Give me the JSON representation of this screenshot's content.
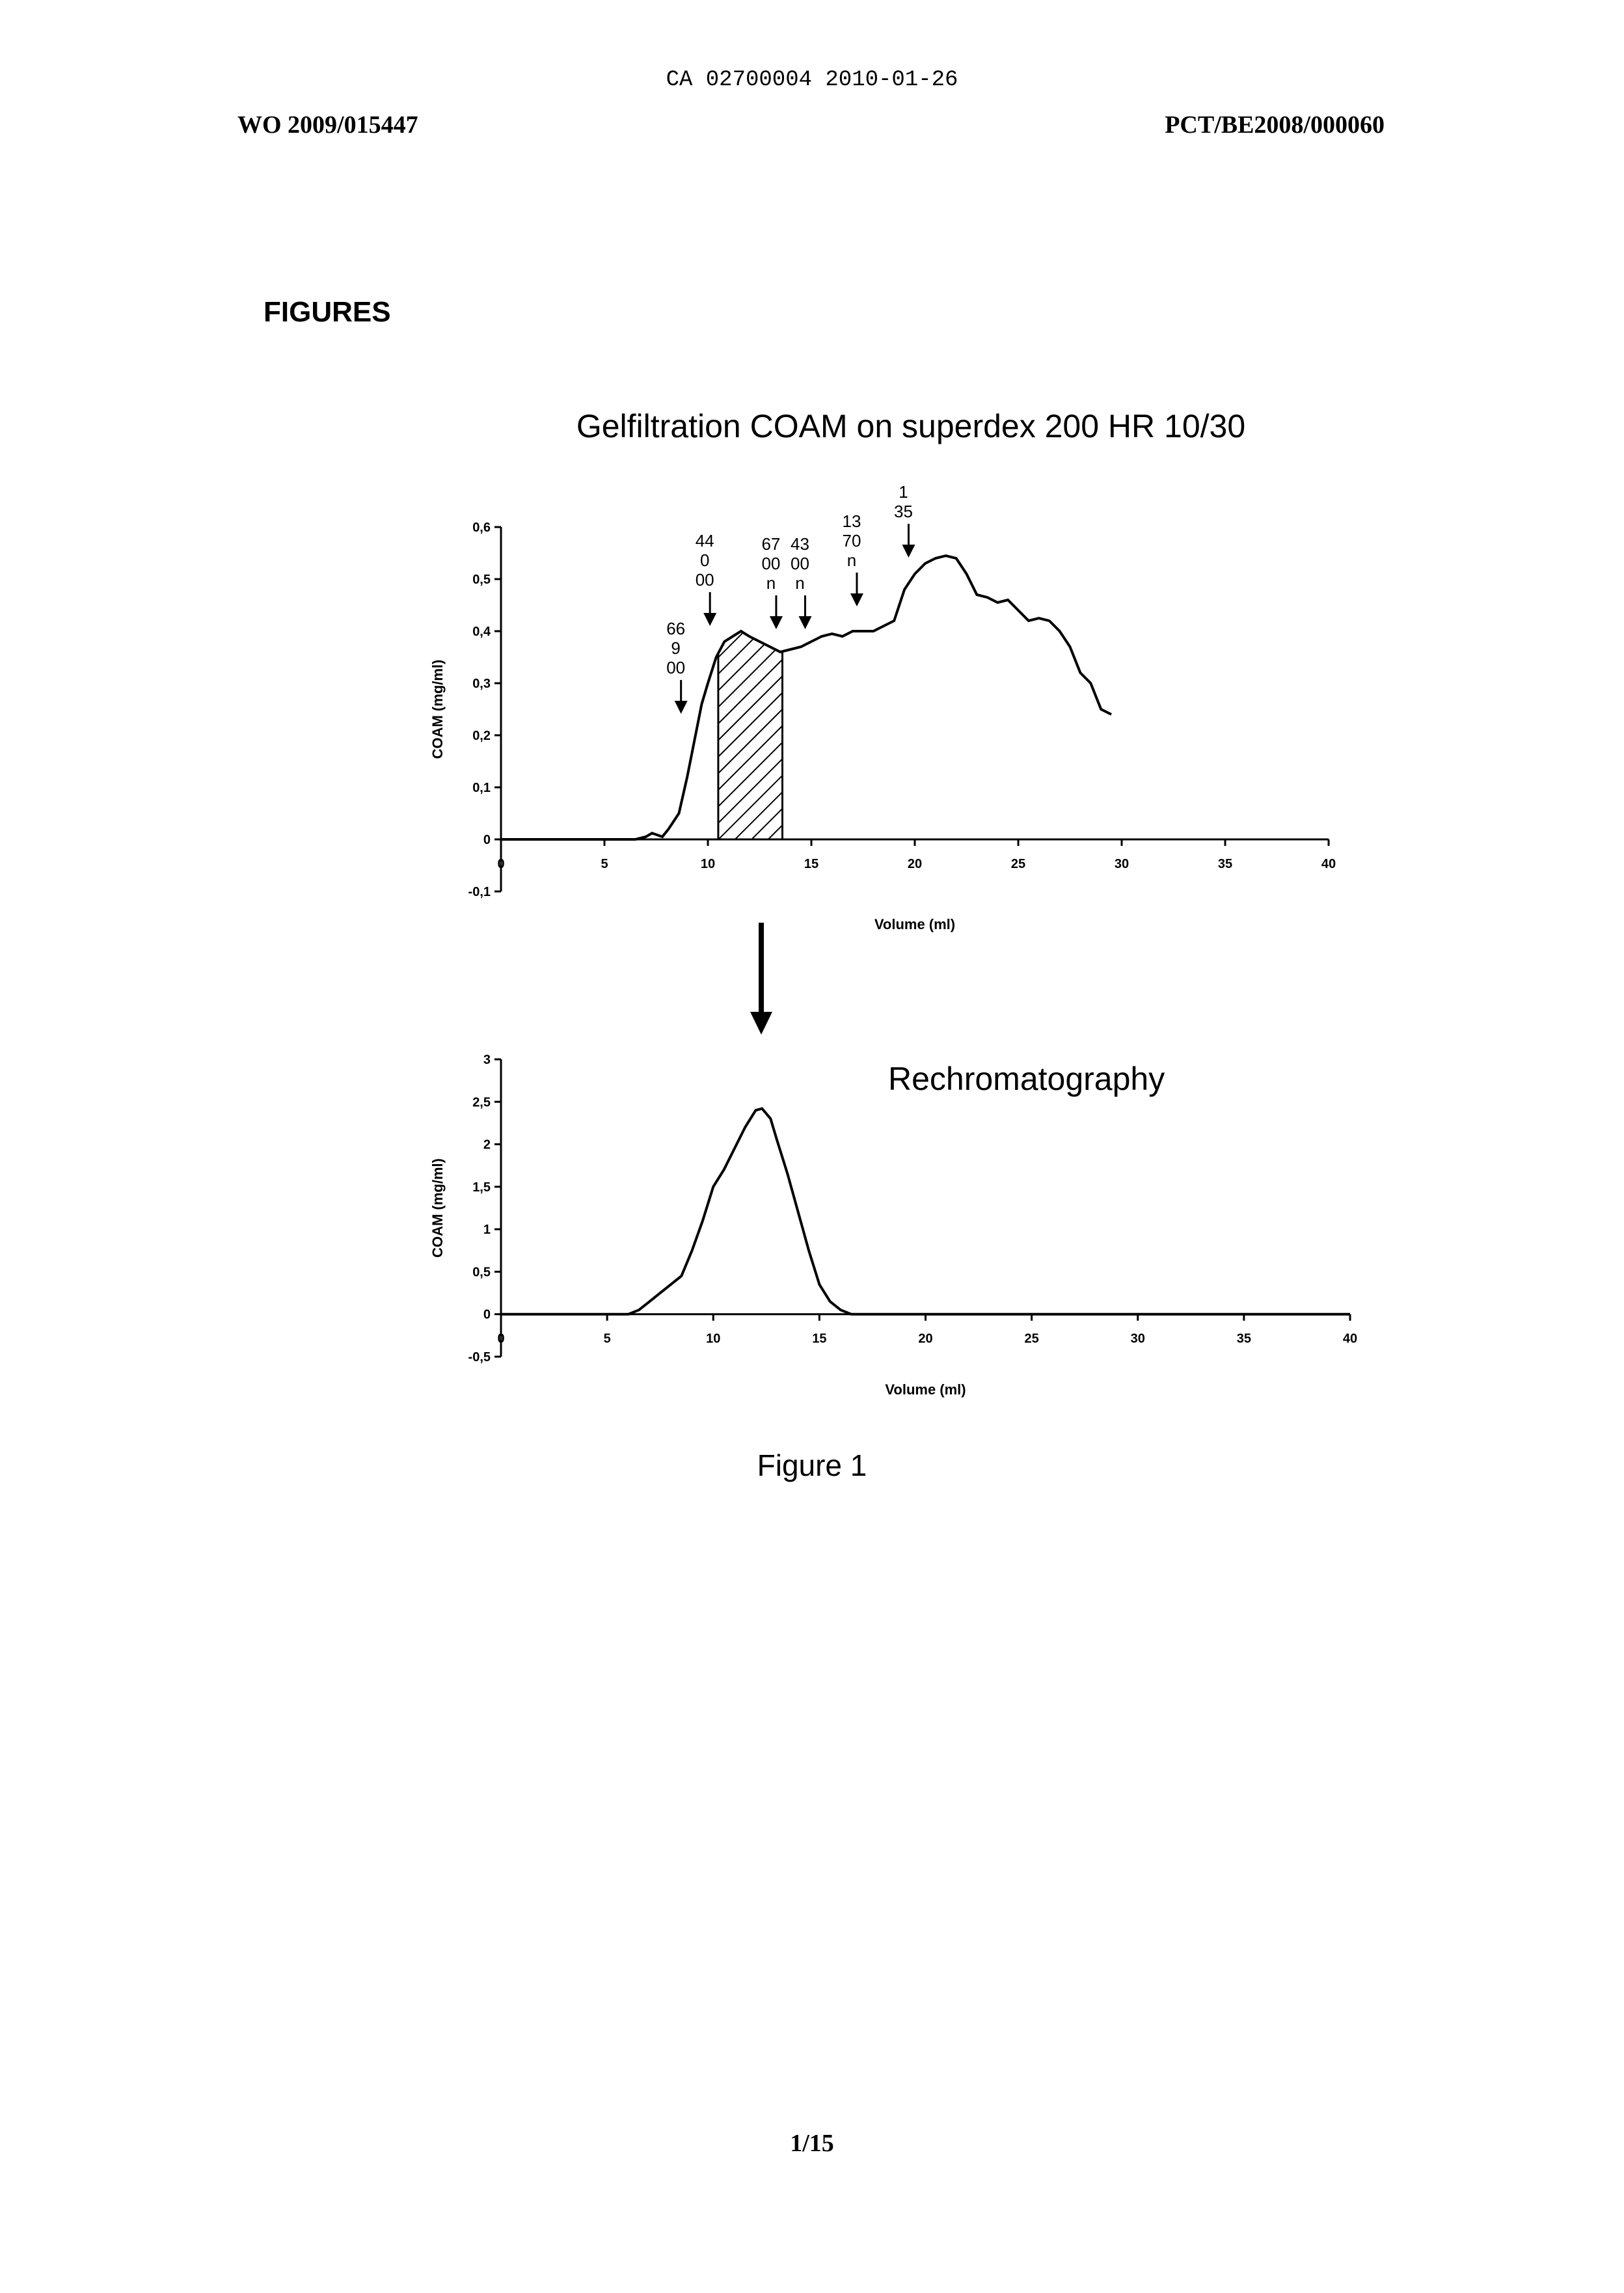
{
  "header": {
    "top_center": "CA 02700004 2010-01-26",
    "left": "WO 2009/015447",
    "right": "PCT/BE2008/000060"
  },
  "section_title": "FIGURES",
  "caption": "Figure 1",
  "page_number": "1/15",
  "chart_data": [
    {
      "type": "line",
      "title": "Gelfiltration COAM on superdex 200 HR 10/30",
      "xlabel": "Volume (ml)",
      "ylabel": "COAM (mg/ml)",
      "xlim": [
        0,
        40
      ],
      "ylim": [
        -0.1,
        0.6
      ],
      "x_ticks": [
        "0",
        "5",
        "10",
        "15",
        "20",
        "25",
        "30",
        "35",
        "40"
      ],
      "y_ticks": [
        "-0,1",
        "0",
        "0,1",
        "0,2",
        "0,3",
        "0,4",
        "0,5",
        "0,6"
      ],
      "series": [
        {
          "x": [
            0,
            6.5,
            7,
            7.3,
            7.8,
            8.1,
            8.6,
            9,
            9.4,
            9.7,
            10,
            10.4,
            10.8,
            11.2,
            11.6,
            12,
            12.5,
            13,
            13.5,
            14,
            14.5,
            15,
            15.5,
            16,
            16.5,
            17,
            18,
            19,
            19.5,
            20,
            20.5,
            21,
            21.5,
            22,
            22.5,
            23,
            23.5,
            24,
            24.5,
            25,
            25.5,
            26,
            26.5,
            27,
            27.5,
            28,
            28.5,
            29,
            29.5
          ],
          "y": [
            0,
            0,
            0.005,
            0.012,
            0.005,
            0.02,
            0.05,
            0.12,
            0.2,
            0.26,
            0.3,
            0.35,
            0.38,
            0.39,
            0.4,
            0.39,
            0.38,
            0.37,
            0.36,
            0.365,
            0.37,
            0.38,
            0.39,
            0.395,
            0.39,
            0.4,
            0.4,
            0.42,
            0.48,
            0.51,
            0.53,
            0.54,
            0.545,
            0.54,
            0.51,
            0.47,
            0.465,
            0.455,
            0.46,
            0.44,
            0.42,
            0.425,
            0.42,
            0.4,
            0.37,
            0.32,
            0.3,
            0.25,
            0.24
          ]
        }
      ],
      "shaded_region_x": [
        10.5,
        13.6
      ],
      "markers": [
        {
          "label": "66\n9\n00",
          "x": 8.7
        },
        {
          "label": "44\n0\n00",
          "x": 10.1
        },
        {
          "label": "67\n00\nn",
          "x": 13.3
        },
        {
          "label": "43\n00\nn",
          "x": 14.7
        },
        {
          "label": "13\n70\nn",
          "x": 17.2
        },
        {
          "label": "1\n35",
          "x": 19.7
        }
      ]
    },
    {
      "type": "line",
      "title": "Rechromatography",
      "xlabel": "Volume (ml)",
      "ylabel": "COAM (mg/ml)",
      "xlim": [
        0,
        40
      ],
      "ylim": [
        -0.5,
        3
      ],
      "x_ticks": [
        "0",
        "5",
        "10",
        "15",
        "20",
        "25",
        "30",
        "35",
        "40"
      ],
      "y_ticks": [
        "-0,5",
        "0",
        "0,5",
        "1",
        "1,5",
        "2",
        "2,5",
        "3"
      ],
      "series": [
        {
          "x": [
            0,
            6,
            6.5,
            7,
            7.5,
            8,
            8.5,
            9,
            9.5,
            10,
            10.5,
            11,
            11.5,
            12,
            12.3,
            12.7,
            13,
            13.5,
            14,
            14.5,
            15,
            15.5,
            16,
            16.5,
            40
          ],
          "y": [
            0,
            0,
            0.05,
            0.15,
            0.25,
            0.35,
            0.45,
            0.75,
            1.1,
            1.5,
            1.7,
            1.95,
            2.2,
            2.4,
            2.42,
            2.3,
            2.05,
            1.65,
            1.2,
            0.75,
            0.35,
            0.15,
            0.05,
            0,
            0
          ]
        }
      ]
    }
  ]
}
